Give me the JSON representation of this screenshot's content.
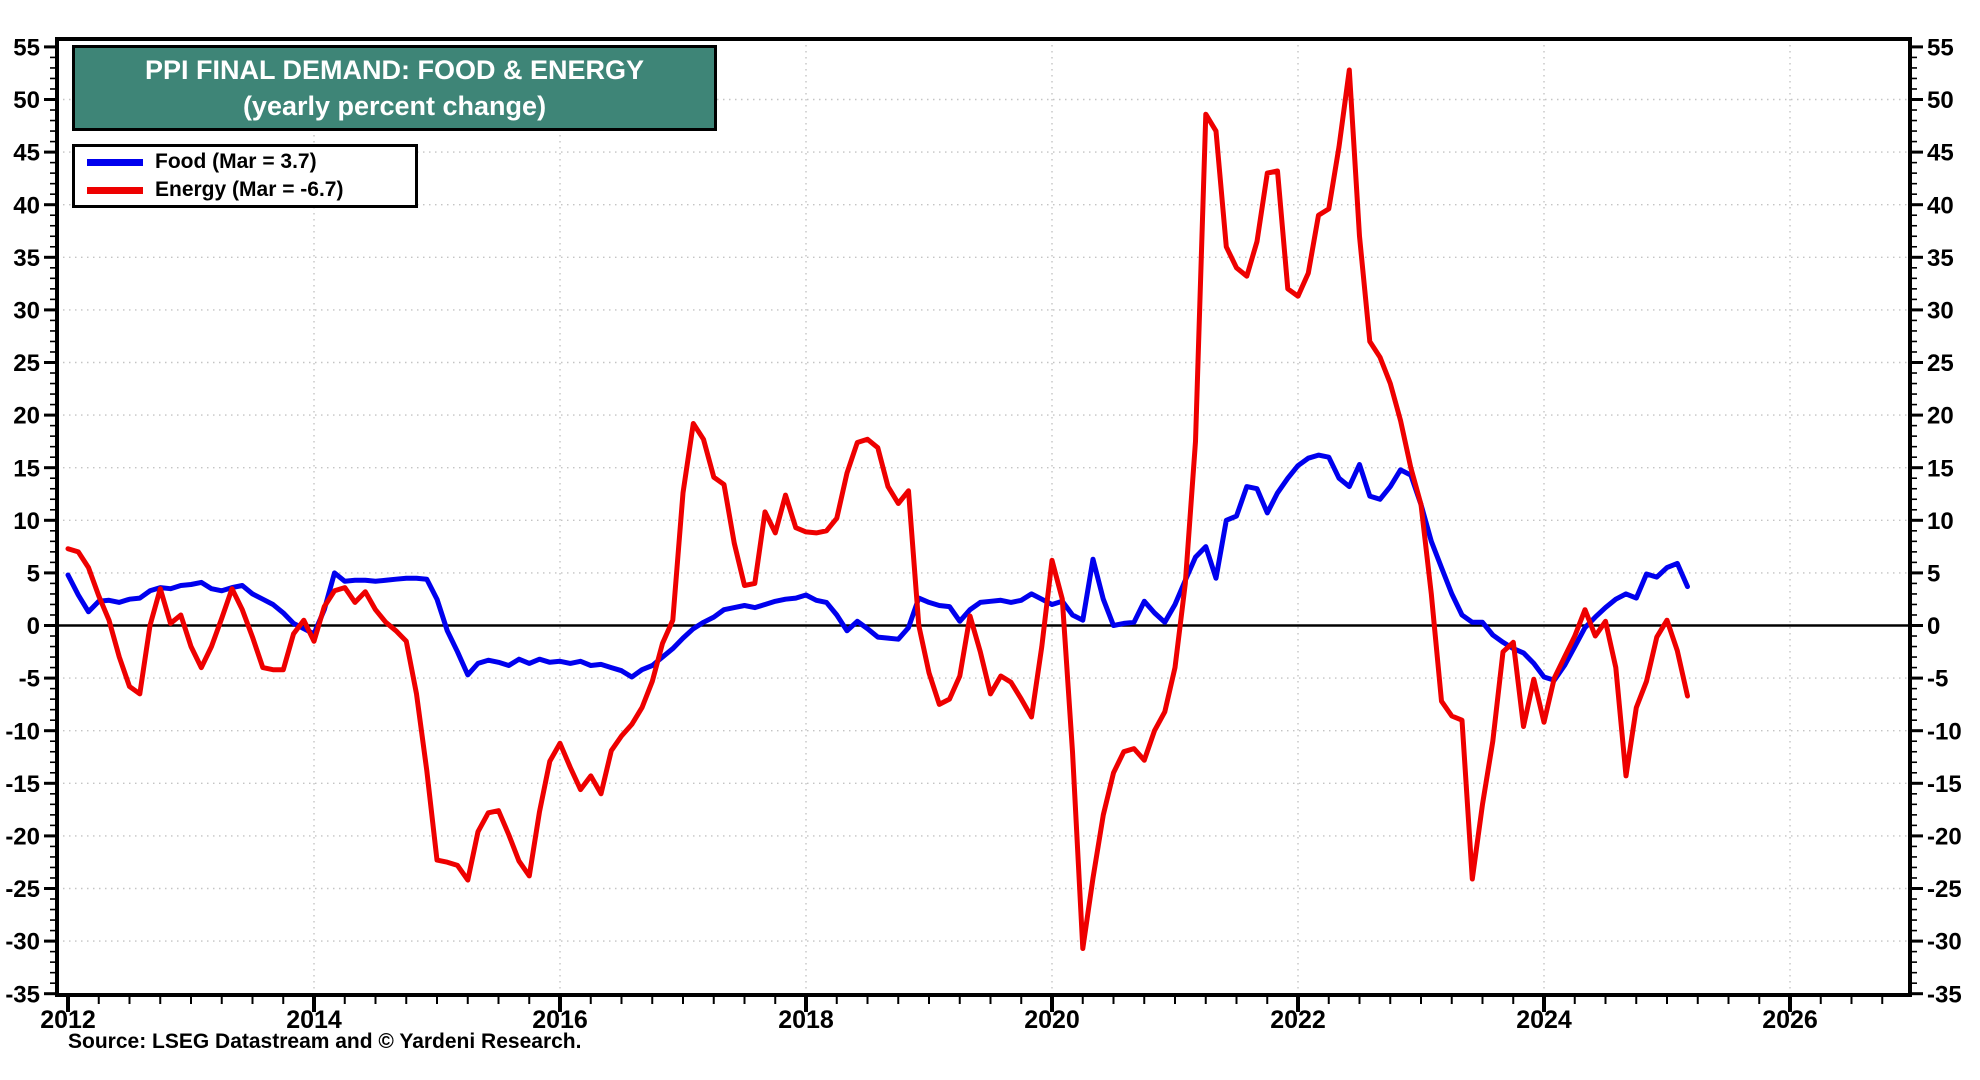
{
  "source_note": "Source: LSEG Datastream and © Yardeni Research.",
  "colors": {
    "title_bg": "#3e8577",
    "food_line": "#0000ee",
    "energy_line": "#ee0000",
    "grid": "#c4c4c4",
    "zero_line": "#000000"
  },
  "chart_data": {
    "type": "line",
    "title": "PPI FINAL DEMAND: FOOD & ENERGY",
    "subtitle": "(yearly percent change)",
    "frequency": "monthly",
    "x_start": "2012-01",
    "x_end": "2025-03",
    "grid": "dotted",
    "zero_line": true,
    "legend_position": "top-left",
    "x_axis": {
      "label_years": [
        2012,
        2014,
        2016,
        2018,
        2020,
        2022,
        2024,
        2026
      ],
      "gridline_years": [
        2014,
        2016,
        2018,
        2020,
        2022,
        2024,
        2026
      ],
      "minor_tick_interval_years": 0.25,
      "range_years": [
        2011.91,
        2026.98
      ]
    },
    "y_axis": {
      "min": -35,
      "max": 55,
      "major_step": 5,
      "minor_step": 1,
      "gridline_min": -30,
      "gridline_max": 50,
      "labels_both_sides": true
    },
    "series": [
      {
        "name": "Food",
        "legend_label": "Food  (Mar = 3.7)",
        "color": "#0000ee",
        "last_point": {
          "month": "Mar 2025",
          "value": 3.7
        },
        "values": [
          4.8,
          2.9,
          1.3,
          2.3,
          2.4,
          2.2,
          2.5,
          2.6,
          3.3,
          3.6,
          3.5,
          3.8,
          3.9,
          4.1,
          3.5,
          3.3,
          3.6,
          3.8,
          3.0,
          2.5,
          2.0,
          1.2,
          0.2,
          -0.3,
          -0.8,
          1.5,
          5.0,
          4.2,
          4.3,
          4.3,
          4.2,
          4.3,
          4.4,
          4.5,
          4.5,
          4.4,
          2.5,
          -0.5,
          -2.5,
          -4.7,
          -3.6,
          -3.3,
          -3.5,
          -3.8,
          -3.2,
          -3.6,
          -3.2,
          -3.5,
          -3.4,
          -3.6,
          -3.4,
          -3.8,
          -3.7,
          -4.0,
          -4.3,
          -4.9,
          -4.2,
          -3.8,
          -3.0,
          -2.2,
          -1.2,
          -0.3,
          0.3,
          0.8,
          1.5,
          1.7,
          1.9,
          1.7,
          2.0,
          2.3,
          2.5,
          2.6,
          2.9,
          2.4,
          2.2,
          1.0,
          -0.5,
          0.4,
          -0.3,
          -1.1,
          -1.2,
          -1.3,
          -0.2,
          2.6,
          2.2,
          1.9,
          1.8,
          0.4,
          1.5,
          2.2,
          2.3,
          2.4,
          2.2,
          2.4,
          3.0,
          2.5,
          2.0,
          2.3,
          1.0,
          0.5,
          6.3,
          2.5,
          0.0,
          0.2,
          0.3,
          2.3,
          1.2,
          0.3,
          2.0,
          4.3,
          6.5,
          7.5,
          4.5,
          10.0,
          10.4,
          13.2,
          13.0,
          10.7,
          12.6,
          14.0,
          15.2,
          15.9,
          16.2,
          16.0,
          14.0,
          13.2,
          15.3,
          12.3,
          12.0,
          13.2,
          14.8,
          14.3,
          11.5,
          8.0,
          5.5,
          3.0,
          1.0,
          0.3,
          0.3,
          -0.9,
          -1.6,
          -2.2,
          -2.6,
          -3.6,
          -4.9,
          -5.2,
          -3.8,
          -2.0,
          -0.2,
          0.8,
          1.7,
          2.5,
          3.0,
          2.6,
          4.9,
          4.6,
          5.5,
          5.9,
          3.7
        ]
      },
      {
        "name": "Energy",
        "legend_label": "Energy (Mar = -6.7)",
        "color": "#ee0000",
        "last_point": {
          "month": "Mar 2025",
          "value": -6.7
        },
        "values": [
          7.3,
          7.0,
          5.5,
          2.8,
          0.5,
          -3.0,
          -5.8,
          -6.5,
          0.0,
          3.5,
          0.2,
          1.0,
          -2.0,
          -4.0,
          -2.0,
          0.7,
          3.5,
          1.5,
          -1.1,
          -4.0,
          -4.2,
          -4.2,
          -0.8,
          0.5,
          -1.5,
          1.8,
          3.3,
          3.6,
          2.2,
          3.2,
          1.5,
          0.3,
          -0.5,
          -1.5,
          -6.5,
          -13.8,
          -22.3,
          -22.5,
          -22.8,
          -24.2,
          -19.6,
          -17.8,
          -17.6,
          -19.9,
          -22.4,
          -23.8,
          -17.7,
          -12.9,
          -11.2,
          -13.5,
          -15.6,
          -14.3,
          -16.0,
          -11.9,
          -10.5,
          -9.4,
          -7.8,
          -5.3,
          -1.7,
          0.5,
          12.6,
          19.2,
          17.7,
          14.1,
          13.4,
          7.8,
          3.8,
          4.0,
          10.8,
          8.8,
          12.4,
          9.3,
          8.9,
          8.8,
          9.0,
          10.2,
          14.5,
          17.4,
          17.7,
          16.9,
          13.2,
          11.6,
          12.8,
          0.0,
          -4.5,
          -7.5,
          -7.0,
          -4.8,
          0.9,
          -2.5,
          -6.5,
          -4.8,
          -5.4,
          -7.0,
          -8.7,
          -2.0,
          6.2,
          2.5,
          -12.0,
          -30.7,
          -24.0,
          -18.0,
          -14.0,
          -12.0,
          -11.7,
          -12.8,
          -10.0,
          -8.2,
          -4.0,
          4.0,
          17.5,
          48.6,
          47.0,
          36.0,
          34.0,
          33.2,
          36.5,
          43.0,
          43.2,
          32.0,
          31.3,
          33.5,
          39.0,
          39.6,
          45.5,
          52.8,
          37.0,
          27.0,
          25.5,
          23.0,
          19.5,
          15.0,
          11.5,
          3.0,
          -7.2,
          -8.6,
          -9.0,
          -24.1,
          -17.0,
          -11.0,
          -2.5,
          -1.6,
          -9.6,
          -5.1,
          -9.2,
          -5.0,
          -3.0,
          -1.0,
          1.5,
          -1.0,
          0.4,
          -4.0,
          -14.3,
          -7.8,
          -5.3,
          -1.1,
          0.5,
          -2.4,
          -6.7
        ]
      }
    ]
  }
}
